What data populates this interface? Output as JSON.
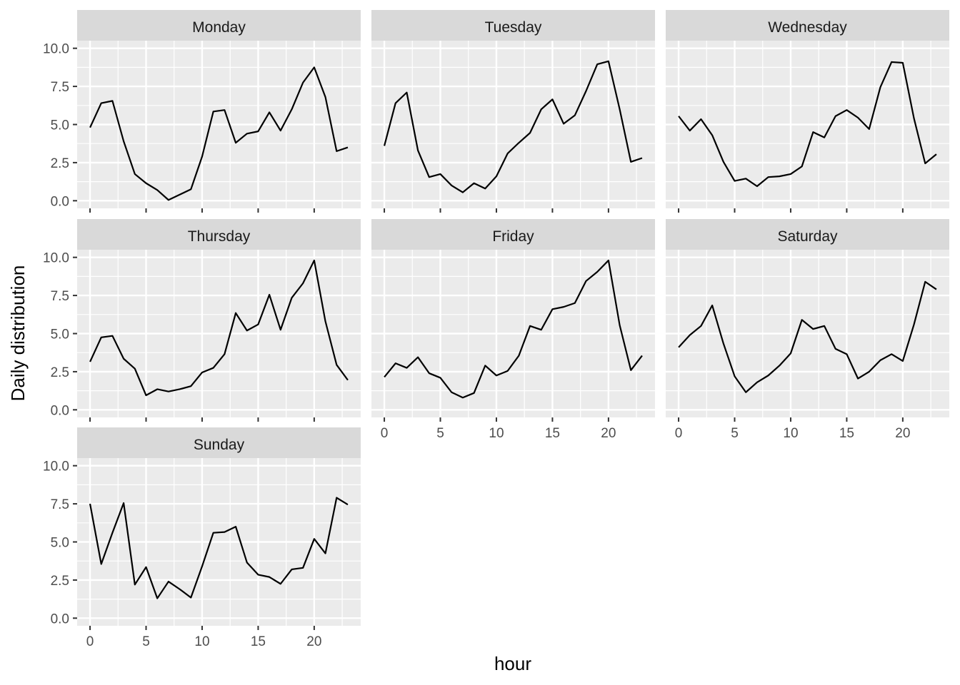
{
  "chart_data": {
    "type": "line",
    "layout": "facet_wrap",
    "ncol": 3,
    "xlabel": "hour",
    "ylabel": "Daily distribution",
    "xlim": [
      -1.15,
      24.15
    ],
    "ylim": [
      -0.5,
      10.5
    ],
    "x_ticks": [
      0,
      5,
      10,
      15,
      20
    ],
    "y_ticks": [
      0.0,
      2.5,
      5.0,
      7.5,
      10.0
    ],
    "x_tick_labels": [
      "0",
      "5",
      "10",
      "15",
      "20"
    ],
    "y_tick_labels": [
      "0.0",
      "2.5",
      "5.0",
      "7.5",
      "10.0"
    ],
    "grid": true,
    "line_color": "#000000",
    "panel_background": "#EBEBEB",
    "strip_background": "#D9D9D9",
    "x": [
      0,
      1,
      2,
      3,
      4,
      5,
      6,
      7,
      8,
      9,
      10,
      11,
      12,
      13,
      14,
      15,
      16,
      17,
      18,
      19,
      20,
      21,
      22,
      23
    ],
    "panels": [
      {
        "name": "Monday",
        "values": [
          4.8,
          6.4,
          6.55,
          3.9,
          1.75,
          1.15,
          0.7,
          0.05,
          0.4,
          0.75,
          2.9,
          5.85,
          5.95,
          3.8,
          4.4,
          4.55,
          5.8,
          4.6,
          6.0,
          7.75,
          8.75,
          6.8,
          3.25,
          3.5
        ]
      },
      {
        "name": "Tuesday",
        "values": [
          3.6,
          6.4,
          7.1,
          3.3,
          1.55,
          1.75,
          1.0,
          0.55,
          1.15,
          0.8,
          1.6,
          3.1,
          3.8,
          4.45,
          6.0,
          6.65,
          5.05,
          5.6,
          7.2,
          8.95,
          9.15,
          6.0,
          2.55,
          2.8
        ]
      },
      {
        "name": "Wednesday",
        "values": [
          5.55,
          4.6,
          5.35,
          4.3,
          2.55,
          1.3,
          1.45,
          0.95,
          1.55,
          1.6,
          1.75,
          2.25,
          4.5,
          4.15,
          5.55,
          5.95,
          5.45,
          4.7,
          7.45,
          9.1,
          9.05,
          5.4,
          2.45,
          3.05
        ]
      },
      {
        "name": "Thursday",
        "values": [
          3.15,
          4.75,
          4.85,
          3.35,
          2.7,
          0.95,
          1.35,
          1.2,
          1.35,
          1.55,
          2.45,
          2.75,
          3.65,
          6.35,
          5.2,
          5.6,
          7.55,
          5.25,
          7.35,
          8.3,
          9.8,
          5.8,
          2.95,
          1.95
        ]
      },
      {
        "name": "Friday",
        "values": [
          2.15,
          3.05,
          2.75,
          3.45,
          2.4,
          2.1,
          1.15,
          0.8,
          1.1,
          2.9,
          2.25,
          2.55,
          3.55,
          5.5,
          5.25,
          6.6,
          6.75,
          7.0,
          8.45,
          9.05,
          9.8,
          5.55,
          2.6,
          3.55
        ]
      },
      {
        "name": "Saturday",
        "values": [
          4.1,
          4.9,
          5.5,
          6.85,
          4.35,
          2.2,
          1.15,
          1.8,
          2.25,
          2.9,
          3.7,
          5.9,
          5.3,
          5.5,
          4.0,
          3.65,
          2.05,
          2.5,
          3.25,
          3.65,
          3.2,
          5.6,
          8.4,
          7.9
        ]
      },
      {
        "name": "Sunday",
        "values": [
          7.5,
          3.55,
          5.6,
          7.55,
          2.2,
          3.35,
          1.3,
          2.4,
          1.9,
          1.35,
          3.4,
          5.6,
          5.65,
          6.0,
          3.65,
          2.85,
          2.7,
          2.25,
          3.2,
          3.3,
          5.2,
          4.25,
          7.9,
          7.45
        ]
      }
    ]
  }
}
